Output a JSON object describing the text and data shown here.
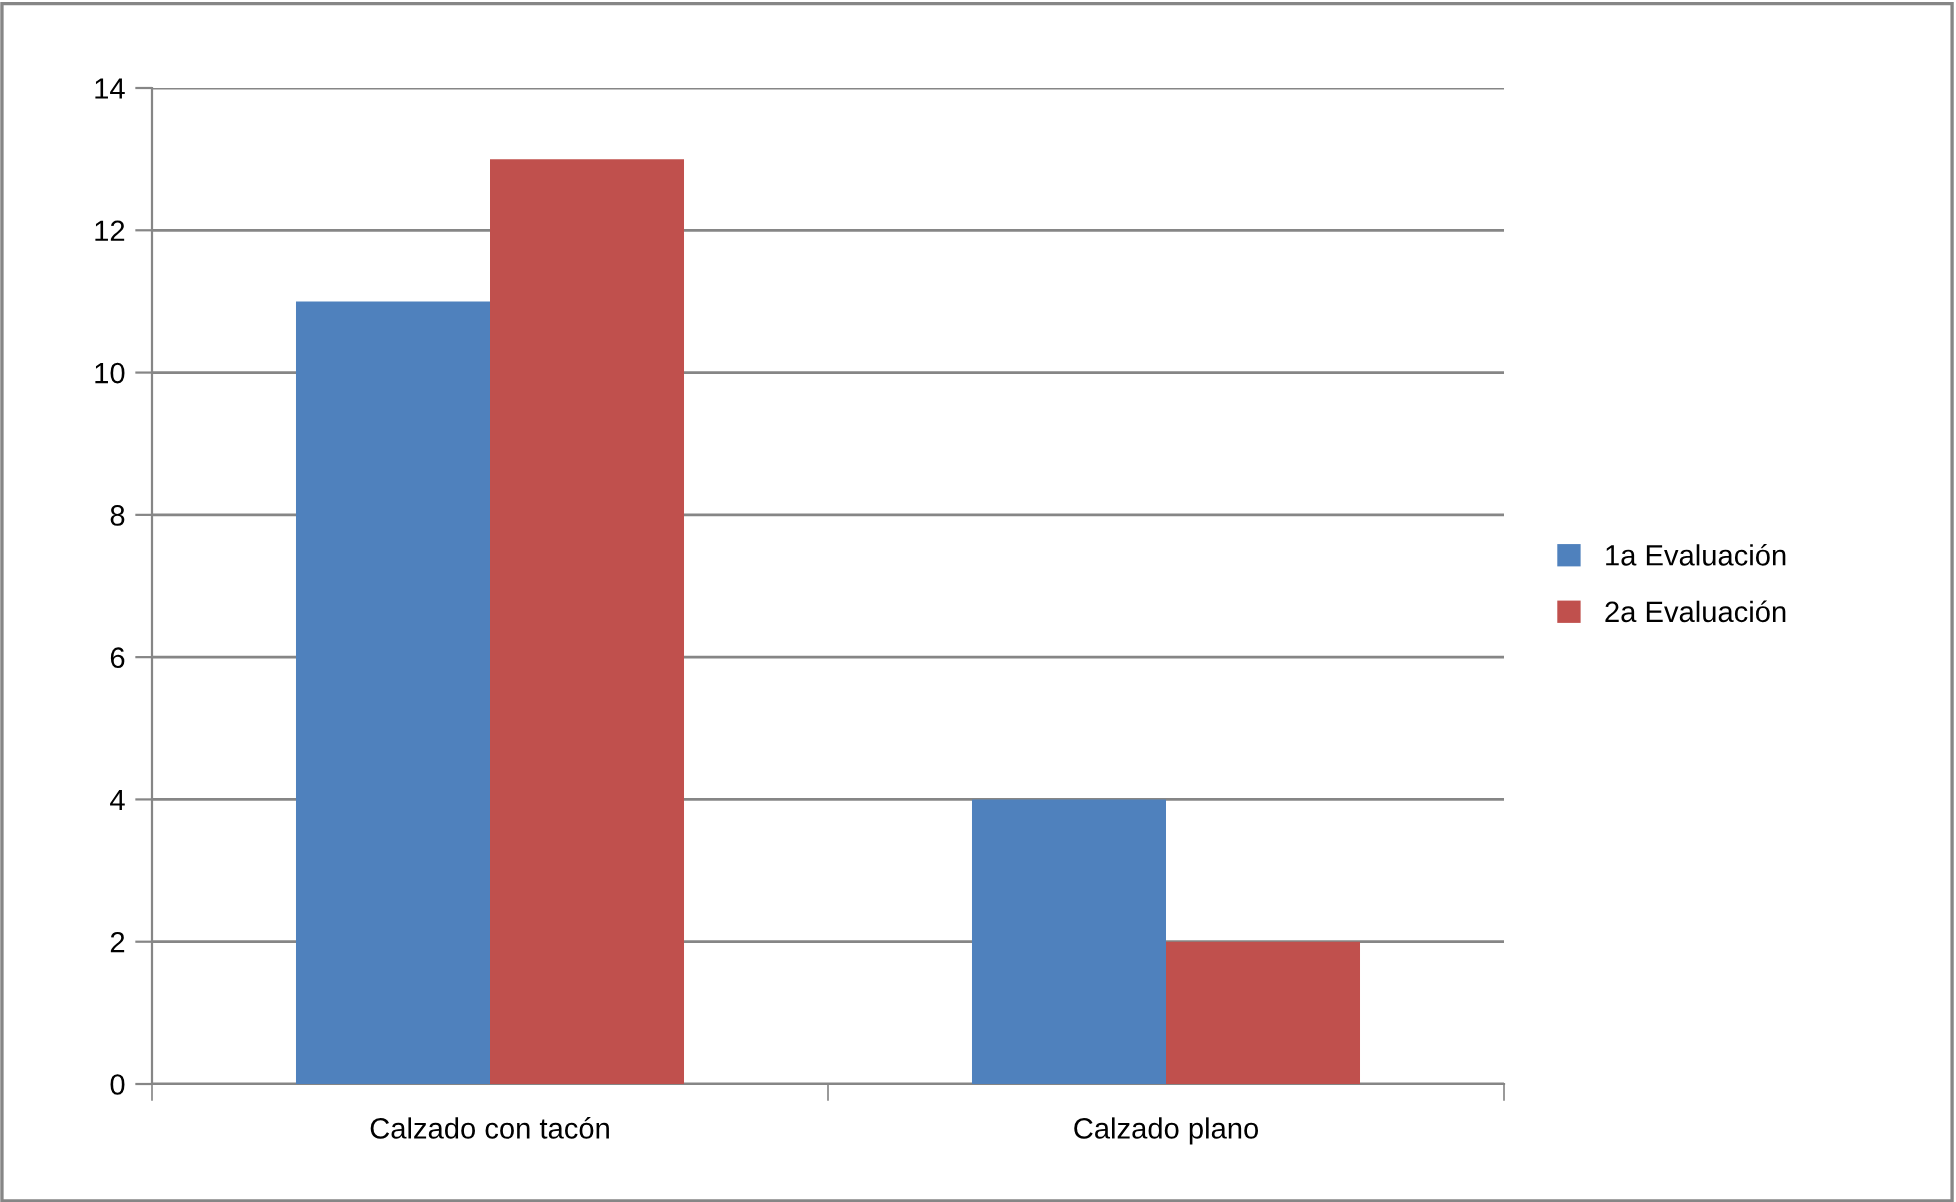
{
  "chart_data": {
    "type": "bar",
    "categories": [
      "Calzado con tacón",
      "Calzado plano"
    ],
    "series": [
      {
        "name": "1a Evaluación",
        "color": "#4f81bd",
        "values": [
          11,
          4
        ]
      },
      {
        "name": "2a Evaluación",
        "color": "#c0504d",
        "values": [
          13,
          2
        ]
      }
    ],
    "ylim": [
      0,
      14
    ],
    "yticks": [
      0,
      2,
      4,
      6,
      8,
      10,
      12,
      14
    ],
    "grid": "y",
    "legend": "right"
  }
}
